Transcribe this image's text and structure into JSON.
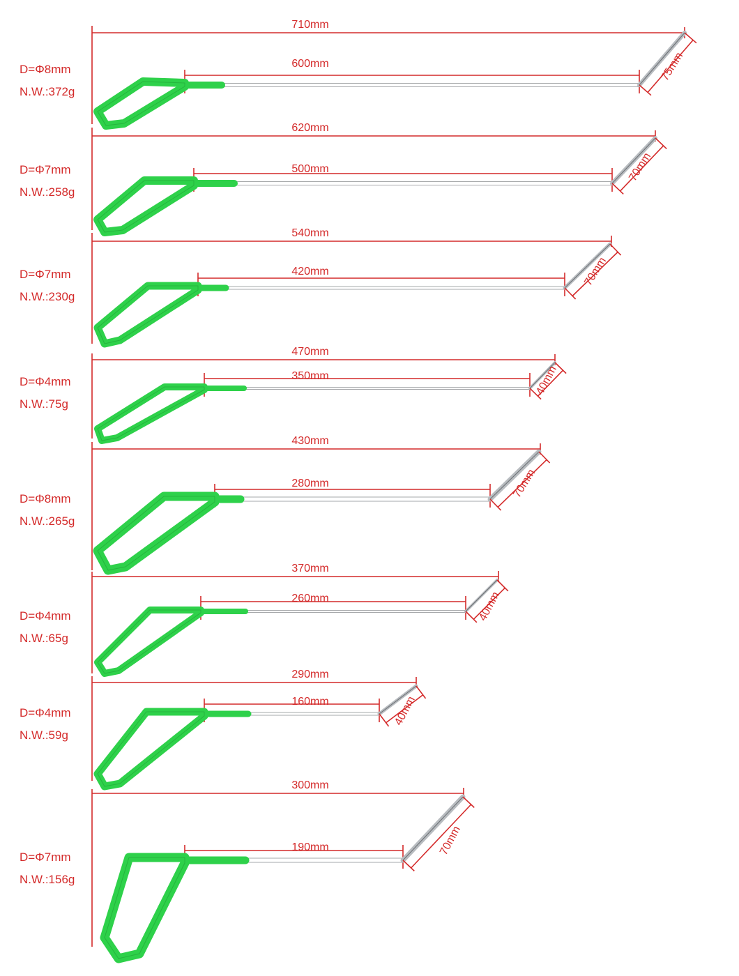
{
  "colors": {
    "dimension": "#d42a2a",
    "grip": "#2ed14a",
    "grip_dark": "#1b9a30",
    "rod": "#b8bcc0",
    "rod_dark": "#6b6f73",
    "background": "#ffffff"
  },
  "tools": [
    {
      "diameter": "D=Φ8mm",
      "weight": "N.W.:372g",
      "overall_length": "710mm",
      "shaft_length": "600mm",
      "tip_length": "75mm"
    },
    {
      "diameter": "D=Φ7mm",
      "weight": "N.W.:258g",
      "overall_length": "620mm",
      "shaft_length": "500mm",
      "tip_length": "70mm"
    },
    {
      "diameter": "D=Φ7mm",
      "weight": "N.W.:230g",
      "overall_length": "540mm",
      "shaft_length": "420mm",
      "tip_length": "70mm"
    },
    {
      "diameter": "D=Φ4mm",
      "weight": "N.W.:75g",
      "overall_length": "470mm",
      "shaft_length": "350mm",
      "tip_length": "40mm"
    },
    {
      "diameter": "D=Φ8mm",
      "weight": "N.W.:265g",
      "overall_length": "430mm",
      "shaft_length": "280mm",
      "tip_length": "70mm"
    },
    {
      "diameter": "D=Φ4mm",
      "weight": "N.W.:65g",
      "overall_length": "370mm",
      "shaft_length": "260mm",
      "tip_length": "40mm"
    },
    {
      "diameter": "D=Φ4mm",
      "weight": "N.W.:59g",
      "overall_length": "290mm",
      "shaft_length": "160mm",
      "tip_length": "40mm"
    },
    {
      "diameter": "D=Φ7mm",
      "weight": "N.W.:156g",
      "overall_length": "300mm",
      "shaft_length": "190mm",
      "tip_length": "70mm"
    }
  ]
}
